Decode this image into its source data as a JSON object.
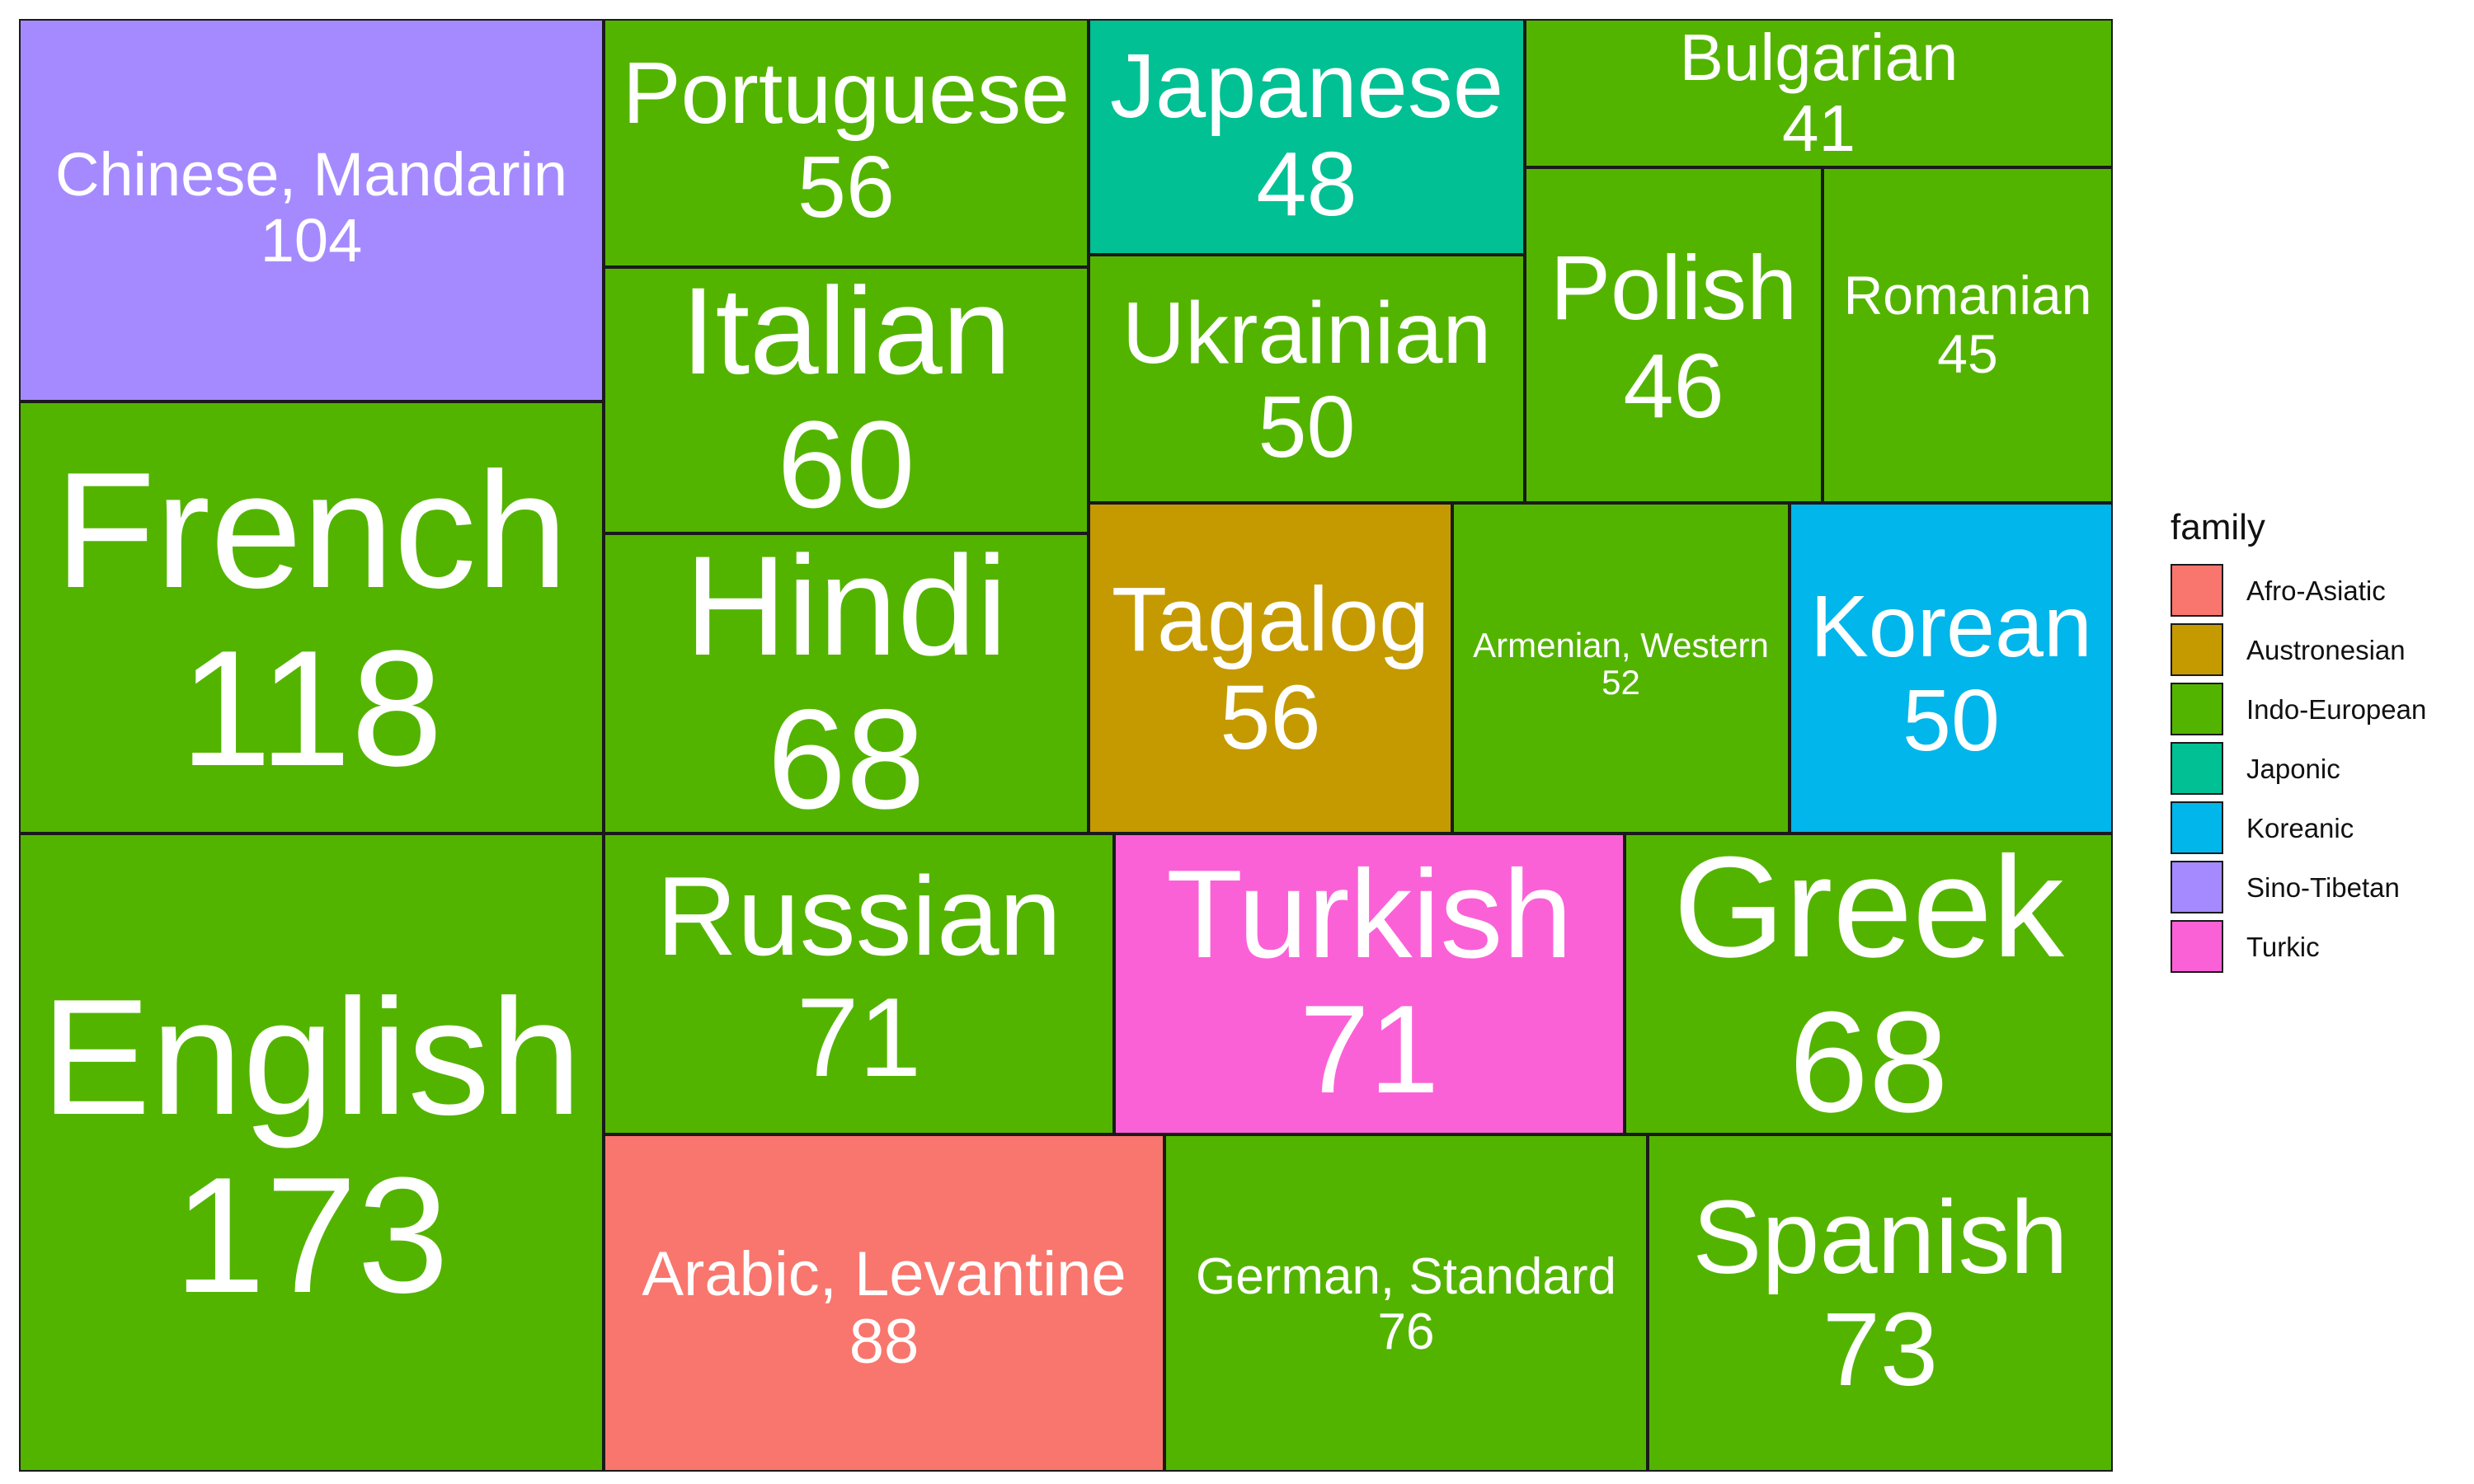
{
  "chart_data": {
    "type": "treemap",
    "legend_title": "family",
    "legend_position": "right",
    "families": [
      {
        "name": "Afro-Asiatic",
        "color": "#F8766D"
      },
      {
        "name": "Austronesian",
        "color": "#C49A00"
      },
      {
        "name": "Indo-European",
        "color": "#53B400"
      },
      {
        "name": "Japonic",
        "color": "#00C094"
      },
      {
        "name": "Koreanic",
        "color": "#00B6EB"
      },
      {
        "name": "Sino-Tibetan",
        "color": "#A58AFF"
      },
      {
        "name": "Turkic",
        "color": "#FB61D7"
      }
    ],
    "items": [
      {
        "name": "English",
        "value": 173,
        "family": "Indo-European"
      },
      {
        "name": "French",
        "value": 118,
        "family": "Indo-European"
      },
      {
        "name": "Chinese, Mandarin",
        "value": 104,
        "family": "Sino-Tibetan"
      },
      {
        "name": "Arabic, Levantine",
        "value": 88,
        "family": "Afro-Asiatic"
      },
      {
        "name": "German, Standard",
        "value": 76,
        "family": "Indo-European"
      },
      {
        "name": "Spanish",
        "value": 73,
        "family": "Indo-European"
      },
      {
        "name": "Russian",
        "value": 71,
        "family": "Indo-European"
      },
      {
        "name": "Turkish",
        "value": 71,
        "family": "Turkic"
      },
      {
        "name": "Greek",
        "value": 68,
        "family": "Indo-European"
      },
      {
        "name": "Hindi",
        "value": 68,
        "family": "Indo-European"
      },
      {
        "name": "Italian",
        "value": 60,
        "family": "Indo-European"
      },
      {
        "name": "Portuguese",
        "value": 56,
        "family": "Indo-European"
      },
      {
        "name": "Tagalog",
        "value": 56,
        "family": "Austronesian"
      },
      {
        "name": "Armenian, Western",
        "value": 52,
        "family": "Indo-European"
      },
      {
        "name": "Korean",
        "value": 50,
        "family": "Koreanic"
      },
      {
        "name": "Ukrainian",
        "value": 50,
        "family": "Indo-European"
      },
      {
        "name": "Japanese",
        "value": 48,
        "family": "Japonic"
      },
      {
        "name": "Polish",
        "value": 46,
        "family": "Indo-European"
      },
      {
        "name": "Romanian",
        "value": 45,
        "family": "Indo-European"
      },
      {
        "name": "Bulgarian",
        "value": 41,
        "family": "Indo-European"
      }
    ]
  }
}
